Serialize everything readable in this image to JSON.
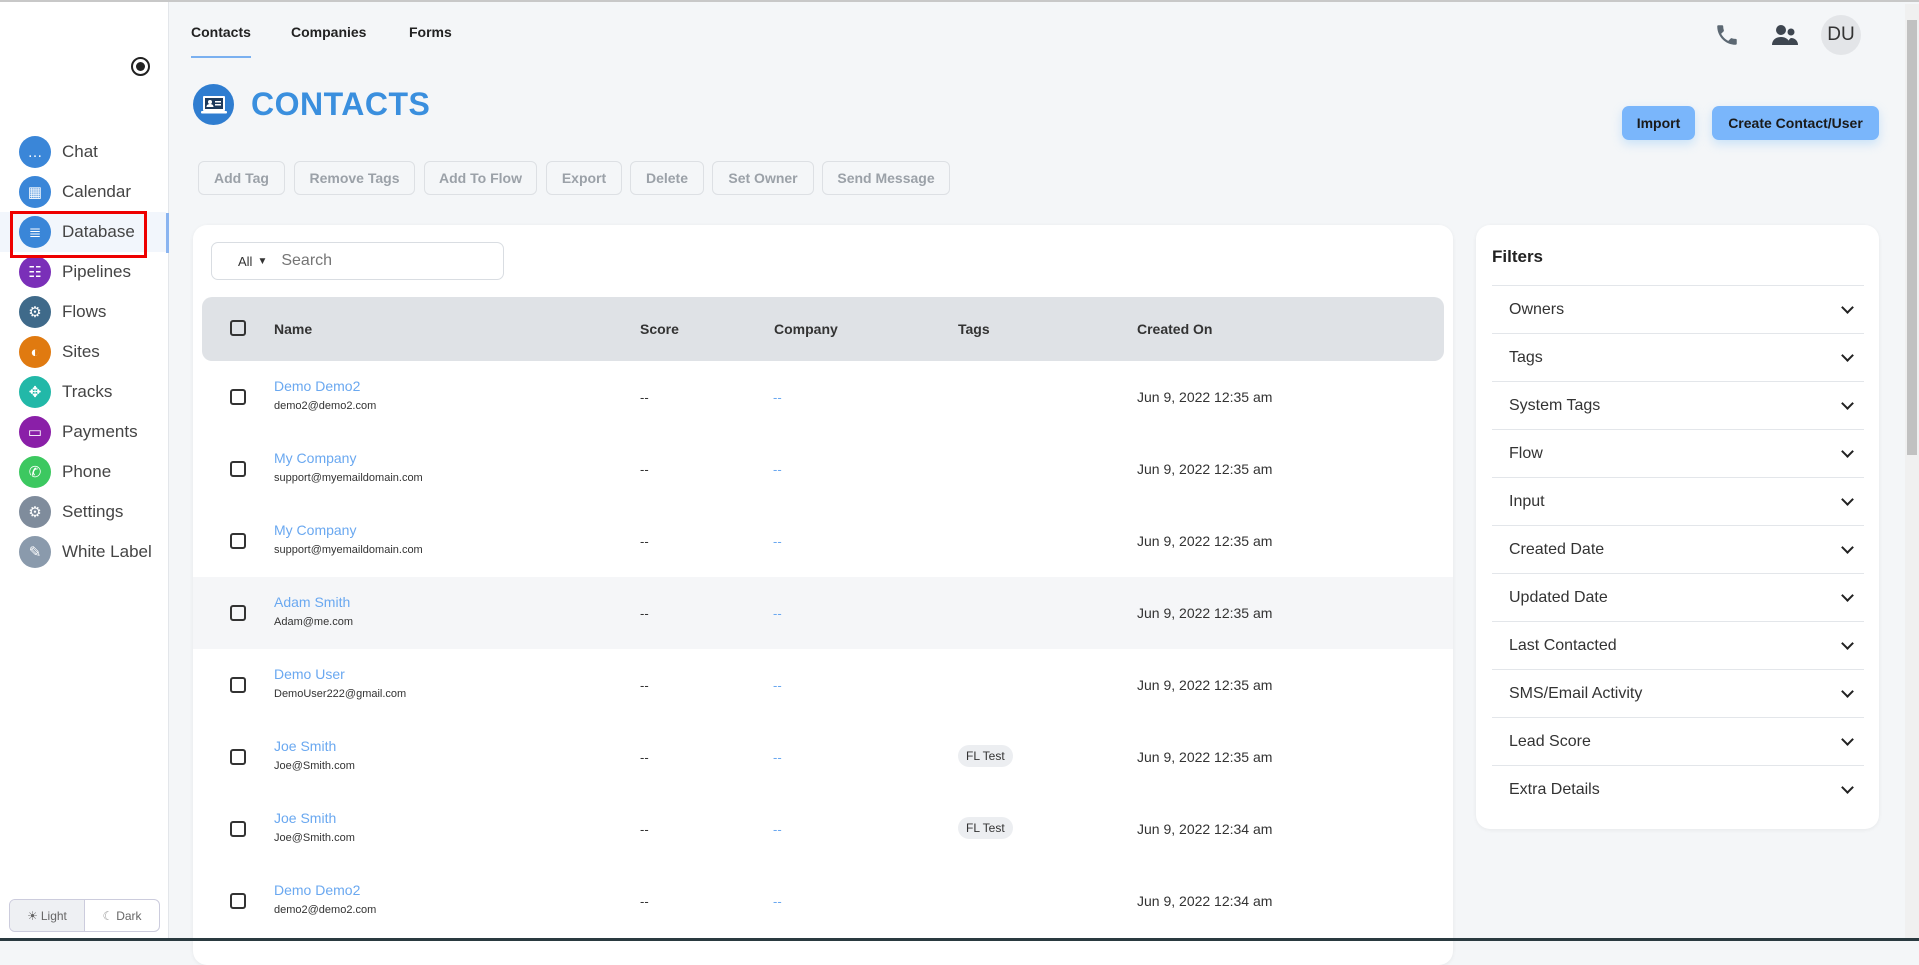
{
  "sidebar": {
    "items": [
      {
        "label": "Chat",
        "icon": "chat-icon",
        "color": "#3a86d8"
      },
      {
        "label": "Calendar",
        "icon": "calendar-icon",
        "color": "#3a86d8"
      },
      {
        "label": "Database",
        "icon": "database-icon",
        "color": "#3a86d8"
      },
      {
        "label": "Pipelines",
        "icon": "pipelines-icon",
        "color": "#7a2fb8"
      },
      {
        "label": "Flows",
        "icon": "flows-icon",
        "color": "#3f6a8a"
      },
      {
        "label": "Sites",
        "icon": "sites-icon",
        "color": "#e07a10"
      },
      {
        "label": "Tracks",
        "icon": "tracks-icon",
        "color": "#22b8a8"
      },
      {
        "label": "Payments",
        "icon": "payments-icon",
        "color": "#8a1fa8"
      },
      {
        "label": "Phone",
        "icon": "phone-icon",
        "color": "#3cc860"
      },
      {
        "label": "Settings",
        "icon": "settings-icon",
        "color": "#7f8c9c"
      },
      {
        "label": "White Label",
        "icon": "white-label-icon",
        "color": "#8a9aac"
      }
    ],
    "active": "Database",
    "theme": {
      "light": "Light",
      "dark": "Dark"
    }
  },
  "tabs": [
    "Contacts",
    "Companies",
    "Forms"
  ],
  "header": {
    "avatar": "DU"
  },
  "page": {
    "title": "CONTACTS",
    "import": "Import",
    "create": "Create Contact/User"
  },
  "actions": [
    "Add Tag",
    "Remove Tags",
    "Add To Flow",
    "Export",
    "Delete",
    "Set Owner",
    "Send Message"
  ],
  "search": {
    "filter": "All",
    "placeholder": "Search"
  },
  "table": {
    "columns": [
      "Name",
      "Score",
      "Company",
      "Tags",
      "Created On"
    ],
    "rows": [
      {
        "name": "Demo Demo2",
        "email": "demo2@demo2.com",
        "score": "--",
        "company": "--",
        "tag": "",
        "created": "Jun 9, 2022 12:35 am"
      },
      {
        "name": "My Company",
        "email": "support@myemaildomain.com",
        "score": "--",
        "company": "--",
        "tag": "",
        "created": "Jun 9, 2022 12:35 am"
      },
      {
        "name": "My Company",
        "email": "support@myemaildomain.com",
        "score": "--",
        "company": "--",
        "tag": "",
        "created": "Jun 9, 2022 12:35 am"
      },
      {
        "name": "Adam Smith",
        "email": "Adam@me.com",
        "score": "--",
        "company": "--",
        "tag": "",
        "created": "Jun 9, 2022 12:35 am"
      },
      {
        "name": "Demo User",
        "email": "DemoUser222@gmail.com",
        "score": "--",
        "company": "--",
        "tag": "",
        "created": "Jun 9, 2022 12:35 am"
      },
      {
        "name": "Joe Smith",
        "email": "Joe@Smith.com",
        "score": "--",
        "company": "--",
        "tag": "FL Test",
        "created": "Jun 9, 2022 12:35 am"
      },
      {
        "name": "Joe Smith",
        "email": "Joe@Smith.com",
        "score": "--",
        "company": "--",
        "tag": "FL Test",
        "created": "Jun 9, 2022 12:34 am"
      },
      {
        "name": "Demo Demo2",
        "email": "demo2@demo2.com",
        "score": "--",
        "company": "--",
        "tag": "",
        "created": "Jun 9, 2022 12:34 am"
      }
    ]
  },
  "filters": {
    "title": "Filters",
    "items": [
      "Owners",
      "Tags",
      "System Tags",
      "Flow",
      "Input",
      "Created Date",
      "Updated Date",
      "Last Contacted",
      "SMS/Email Activity",
      "Lead Score",
      "Extra Details"
    ]
  }
}
